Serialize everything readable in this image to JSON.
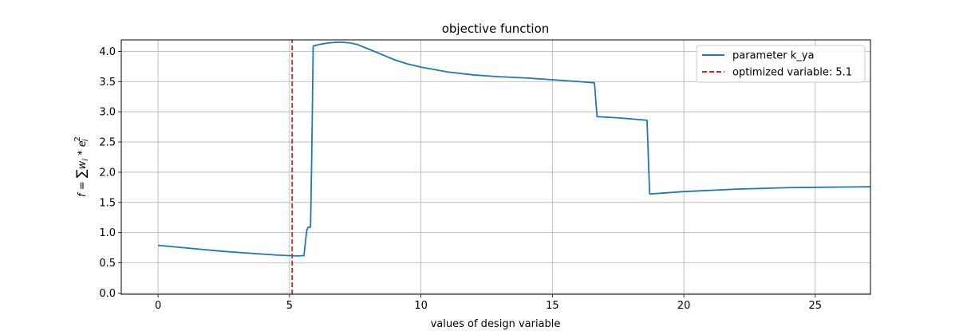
{
  "chart_data": {
    "type": "line",
    "title": "objective function",
    "xlabel": "values of design variable",
    "ylabel_parts": {
      "f": "f",
      "eq": " = ",
      "sum": "∑",
      "w": "w",
      "i": "i",
      "star": " * ",
      "e": "e",
      "sup": "2"
    },
    "xlim": [
      -1.4,
      27.1
    ],
    "ylim": [
      -0.02,
      4.19
    ],
    "xticks": [
      0,
      5,
      10,
      15,
      20,
      25
    ],
    "xtick_labels": [
      "0",
      "5",
      "10",
      "15",
      "20",
      "25"
    ],
    "yticks": [
      0.0,
      0.5,
      1.0,
      1.5,
      2.0,
      2.5,
      3.0,
      3.5,
      4.0
    ],
    "ytick_labels": [
      "0.0",
      "0.5",
      "1.0",
      "1.5",
      "2.0",
      "2.5",
      "3.0",
      "3.5",
      "4.0"
    ],
    "grid": true,
    "legend_position": "top-right",
    "series": [
      {
        "name": "parameter k_ya",
        "color": "#1f77b4",
        "style": "solid",
        "x": [
          0,
          0.5,
          1,
          1.5,
          2,
          2.5,
          3,
          3.5,
          4,
          4.5,
          5,
          5.3,
          5.55,
          5.6,
          5.65,
          5.7,
          5.75,
          5.8,
          5.85,
          5.9,
          6.2,
          6.5,
          6.8,
          7.0,
          7.3,
          7.6,
          8.0,
          8.5,
          9.0,
          9.5,
          10.0,
          11.0,
          12.0,
          13.0,
          14.0,
          15.0,
          16.0,
          16.6,
          16.65,
          16.7,
          17.5,
          18.6,
          18.65,
          18.7,
          20.0,
          22.0,
          24.0,
          26.0,
          27.1
        ],
        "y": [
          0.79,
          0.77,
          0.75,
          0.73,
          0.71,
          0.69,
          0.675,
          0.66,
          0.645,
          0.63,
          0.62,
          0.615,
          0.62,
          0.82,
          1.02,
          1.09,
          1.09,
          1.09,
          2.4,
          4.09,
          4.12,
          4.14,
          4.15,
          4.15,
          4.14,
          4.11,
          4.04,
          3.95,
          3.86,
          3.79,
          3.74,
          3.66,
          3.61,
          3.58,
          3.56,
          3.53,
          3.5,
          3.48,
          3.2,
          2.92,
          2.9,
          2.86,
          2.25,
          1.64,
          1.68,
          1.72,
          1.745,
          1.755,
          1.76
        ]
      },
      {
        "name": "optimized variable: 5.1",
        "color": "#d62728",
        "style": "dashed",
        "x": [
          5.1,
          5.1
        ],
        "y": [
          -0.02,
          4.19
        ]
      }
    ]
  }
}
